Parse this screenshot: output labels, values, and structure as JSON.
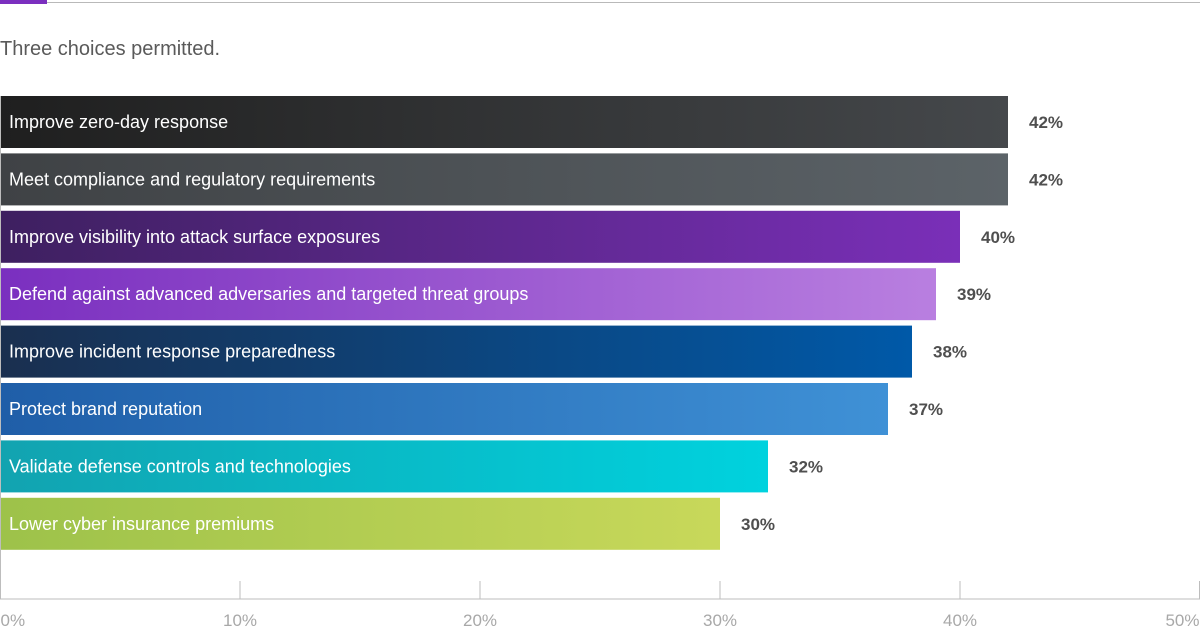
{
  "subtitle": "Three choices permitted.",
  "chart_data": {
    "type": "bar",
    "orientation": "horizontal",
    "categories": [
      "Improve zero-day response",
      "Meet compliance and regulatory requirements",
      "Improve visibility into attack surface exposures",
      "Defend against advanced adversaries and targeted threat groups",
      "Improve incident response preparedness",
      "Protect brand reputation",
      "Validate defense controls and technologies",
      "Lower cyber insurance premiums"
    ],
    "values": [
      42,
      42,
      40,
      39,
      38,
      37,
      32,
      30
    ],
    "value_labels": [
      "42%",
      "42%",
      "40%",
      "39%",
      "38%",
      "37%",
      "32%",
      "30%"
    ],
    "xlim": [
      0,
      50
    ],
    "x_ticks": [
      "0%",
      "10%",
      "20%",
      "30%",
      "40%",
      "50%"
    ],
    "grid": false,
    "colors": [
      [
        "#1f1f1f",
        "#45484b"
      ],
      [
        "#3f4245",
        "#5c6368"
      ],
      [
        "#3e2060",
        "#7a2fb8"
      ],
      [
        "#7a2fbf",
        "#b97fe0"
      ],
      [
        "#1a2f4f",
        "#0059a8"
      ],
      [
        "#1f5ea8",
        "#3f91d6"
      ],
      [
        "#12a3b0",
        "#00d2de"
      ],
      [
        "#9dc24a",
        "#c8d85a"
      ]
    ]
  }
}
